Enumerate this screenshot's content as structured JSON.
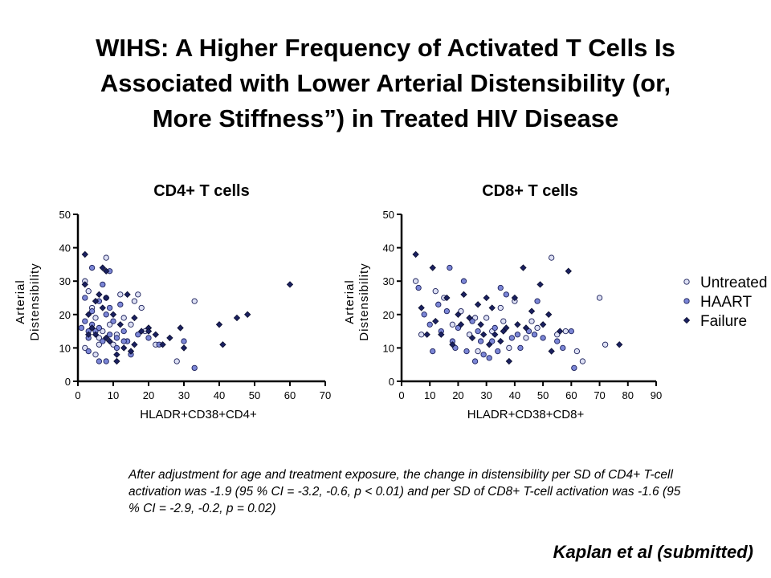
{
  "title": "WIHS: A Higher Frequency of Activated T Cells Is\nAssociated with Lower Arterial Distensibility (or,\nMore Stiffness”) in Treated HIV Disease",
  "caption": "After adjustment for age and treatment exposure, the change in distensibility per SD of CD4+ T-cell activation was -1.9 (95 % CI = -3.2, -0.6, p < 0.01) and per SD of CD8+ T-cell activation was -1.6 (95 % CI = -2.9, -0.2, p = 0.02)",
  "citation": "Kaplan et al (submitted)",
  "legend": [
    {
      "label": "Untreated",
      "color": "#dde0f4"
    },
    {
      "label": "HAART",
      "color": "#7b86d6"
    },
    {
      "label": "Failure",
      "color": "#1a2060"
    }
  ],
  "chart_data": [
    {
      "type": "scatter",
      "title": "CD4+ T cells",
      "xlabel": "HLADR+CD38+CD4+",
      "ylabel": "Arterial Distensibility",
      "xlim": [
        0,
        70
      ],
      "ylim": [
        0,
        50
      ],
      "xticks": [
        0,
        10,
        20,
        30,
        40,
        50,
        60,
        70
      ],
      "yticks": [
        0,
        10,
        20,
        30,
        40,
        50
      ],
      "legend_position": "right",
      "series": [
        {
          "name": "Untreated",
          "points": [
            [
              2,
              30
            ],
            [
              3,
              27
            ],
            [
              4,
              22
            ],
            [
              5,
              19
            ],
            [
              6,
              13
            ],
            [
              8,
              37
            ],
            [
              8,
              25
            ],
            [
              9,
              17
            ],
            [
              10,
              11
            ],
            [
              12,
              26
            ],
            [
              13,
              19
            ],
            [
              15,
              17
            ],
            [
              16,
              24
            ],
            [
              17,
              26
            ],
            [
              18,
              22
            ],
            [
              19,
              15
            ],
            [
              22,
              11
            ],
            [
              28,
              6
            ],
            [
              33,
              24
            ],
            [
              2,
              10
            ],
            [
              5,
              8
            ],
            [
              7,
              15
            ],
            [
              11,
              14
            ],
            [
              6,
              11
            ]
          ]
        },
        {
          "name": "HAART",
          "points": [
            [
              2,
              25
            ],
            [
              2,
              18
            ],
            [
              3,
              15
            ],
            [
              3,
              13
            ],
            [
              4,
              21
            ],
            [
              4,
              17
            ],
            [
              5,
              15
            ],
            [
              6,
              24
            ],
            [
              6,
              16
            ],
            [
              7,
              29
            ],
            [
              7,
              12
            ],
            [
              8,
              20
            ],
            [
              9,
              33
            ],
            [
              9,
              14
            ],
            [
              10,
              18
            ],
            [
              11,
              10
            ],
            [
              12,
              23
            ],
            [
              13,
              15
            ],
            [
              14,
              12
            ],
            [
              15,
              8
            ],
            [
              17,
              14
            ],
            [
              20,
              13
            ],
            [
              23,
              11
            ],
            [
              30,
              12
            ],
            [
              33,
              4
            ],
            [
              3,
              9
            ],
            [
              6,
              6
            ],
            [
              8,
              6
            ],
            [
              13,
              12
            ],
            [
              1,
              16
            ],
            [
              4,
              34
            ],
            [
              9,
              22
            ],
            [
              11,
              13
            ]
          ]
        },
        {
          "name": "Failure",
          "points": [
            [
              2,
              38
            ],
            [
              2,
              29
            ],
            [
              3,
              20
            ],
            [
              4,
              16
            ],
            [
              5,
              14
            ],
            [
              6,
              26
            ],
            [
              7,
              22
            ],
            [
              7,
              34
            ],
            [
              8,
              13
            ],
            [
              9,
              12
            ],
            [
              10,
              20
            ],
            [
              11,
              6
            ],
            [
              12,
              17
            ],
            [
              13,
              10
            ],
            [
              14,
              26
            ],
            [
              15,
              9
            ],
            [
              16,
              19
            ],
            [
              18,
              15
            ],
            [
              20,
              16
            ],
            [
              22,
              14
            ],
            [
              24,
              11
            ],
            [
              26,
              13
            ],
            [
              29,
              16
            ],
            [
              30,
              10
            ],
            [
              40,
              17
            ],
            [
              41,
              11
            ],
            [
              45,
              19
            ],
            [
              48,
              20
            ],
            [
              60,
              29
            ],
            [
              3,
              14
            ],
            [
              5,
              24
            ],
            [
              8,
              33
            ],
            [
              11,
              8
            ],
            [
              16,
              11
            ],
            [
              20,
              15
            ],
            [
              8,
              25
            ]
          ]
        }
      ]
    },
    {
      "type": "scatter",
      "title": "CD8+ T cells",
      "xlabel": "HLADR+CD38+CD8+",
      "ylabel": "Arterial Distensibility",
      "xlim": [
        0,
        90
      ],
      "ylim": [
        0,
        50
      ],
      "xticks": [
        0,
        10,
        20,
        30,
        40,
        50,
        60,
        70,
        80,
        90
      ],
      "yticks": [
        0,
        10,
        20,
        30,
        40,
        50
      ],
      "legend_position": "right",
      "series": [
        {
          "name": "Untreated",
          "points": [
            [
              5,
              30
            ],
            [
              7,
              14
            ],
            [
              12,
              27
            ],
            [
              15,
              25
            ],
            [
              18,
              17
            ],
            [
              21,
              21
            ],
            [
              24,
              14
            ],
            [
              27,
              9
            ],
            [
              30,
              19
            ],
            [
              32,
              15
            ],
            [
              35,
              22
            ],
            [
              38,
              10
            ],
            [
              40,
              24
            ],
            [
              44,
              13
            ],
            [
              48,
              16
            ],
            [
              53,
              37
            ],
            [
              55,
              14
            ],
            [
              58,
              15
            ],
            [
              62,
              9
            ],
            [
              64,
              6
            ],
            [
              70,
              25
            ],
            [
              72,
              11
            ],
            [
              26,
              19
            ],
            [
              36,
              18
            ],
            [
              46,
              18
            ]
          ]
        },
        {
          "name": "HAART",
          "points": [
            [
              6,
              28
            ],
            [
              8,
              20
            ],
            [
              10,
              17
            ],
            [
              11,
              9
            ],
            [
              13,
              23
            ],
            [
              14,
              15
            ],
            [
              16,
              21
            ],
            [
              17,
              34
            ],
            [
              18,
              12
            ],
            [
              20,
              16
            ],
            [
              22,
              30
            ],
            [
              23,
              9
            ],
            [
              25,
              18
            ],
            [
              26,
              6
            ],
            [
              28,
              12
            ],
            [
              29,
              8
            ],
            [
              31,
              7
            ],
            [
              32,
              12
            ],
            [
              33,
              16
            ],
            [
              34,
              9
            ],
            [
              35,
              28
            ],
            [
              37,
              26
            ],
            [
              39,
              13
            ],
            [
              42,
              10
            ],
            [
              45,
              15
            ],
            [
              48,
              24
            ],
            [
              50,
              13
            ],
            [
              55,
              12
            ],
            [
              60,
              15
            ],
            [
              61,
              4
            ],
            [
              19,
              10
            ],
            [
              27,
              15
            ],
            [
              41,
              14
            ],
            [
              47,
              14
            ],
            [
              57,
              10
            ]
          ]
        },
        {
          "name": "Failure",
          "points": [
            [
              5,
              38
            ],
            [
              7,
              22
            ],
            [
              9,
              14
            ],
            [
              11,
              34
            ],
            [
              12,
              18
            ],
            [
              14,
              14
            ],
            [
              16,
              25
            ],
            [
              18,
              11
            ],
            [
              20,
              20
            ],
            [
              22,
              26
            ],
            [
              24,
              19
            ],
            [
              25,
              13
            ],
            [
              27,
              23
            ],
            [
              28,
              17
            ],
            [
              30,
              25
            ],
            [
              31,
              11
            ],
            [
              33,
              14
            ],
            [
              35,
              12
            ],
            [
              37,
              16
            ],
            [
              38,
              6
            ],
            [
              40,
              25
            ],
            [
              41,
              17
            ],
            [
              43,
              34
            ],
            [
              46,
              21
            ],
            [
              49,
              29
            ],
            [
              50,
              17
            ],
            [
              52,
              20
            ],
            [
              56,
              15
            ],
            [
              59,
              33
            ],
            [
              77,
              11
            ],
            [
              21,
              17
            ],
            [
              29,
              14
            ],
            [
              32,
              22
            ],
            [
              36,
              15
            ],
            [
              44,
              16
            ],
            [
              53,
              9
            ]
          ]
        }
      ]
    }
  ]
}
